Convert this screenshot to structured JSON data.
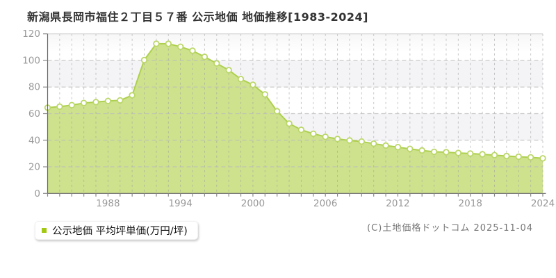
{
  "header": {
    "title": "新潟県長岡市福住２丁目５７番 公示地価 地価推移[1983-2024]"
  },
  "legend": {
    "label": "公示地価 平均坪単価(万円/坪)"
  },
  "footer": {
    "copyright": "(C)土地価格ドットコム 2025-11-04"
  },
  "chart_data": {
    "type": "area",
    "title": "新潟県長岡市福住２丁目５７番 公示地価 地価推移[1983-2024]",
    "xlabel": "",
    "ylabel": "平均坪単価(万円/坪)",
    "x": [
      1983,
      1984,
      1985,
      1986,
      1987,
      1988,
      1989,
      1990,
      1991,
      1992,
      1993,
      1994,
      1995,
      1996,
      1997,
      1998,
      1999,
      2000,
      2001,
      2002,
      2003,
      2004,
      2005,
      2006,
      2007,
      2008,
      2009,
      2010,
      2011,
      2012,
      2013,
      2014,
      2015,
      2016,
      2017,
      2018,
      2019,
      2020,
      2021,
      2022,
      2023,
      2024
    ],
    "series": [
      {
        "name": "公示地価 平均坪単価(万円/坪)",
        "values": [
          64.5,
          65.3,
          66.4,
          68.0,
          68.7,
          69.5,
          70.0,
          73.8,
          100.3,
          112.6,
          112.5,
          110.3,
          107.3,
          102.7,
          97.8,
          92.7,
          86.0,
          81.7,
          74.5,
          61.8,
          52.5,
          47.8,
          44.9,
          42.6,
          41.0,
          39.8,
          39.0,
          37.4,
          36.0,
          34.8,
          33.5,
          32.3,
          31.3,
          31.0,
          30.4,
          30.0,
          29.4,
          28.8,
          28.1,
          27.6,
          27.1,
          26.4
        ]
      }
    ],
    "ylim": [
      0,
      120
    ],
    "yticks": [
      0,
      20,
      40,
      60,
      80,
      100,
      120
    ],
    "xticks_labeled": [
      1988,
      1994,
      2000,
      2006,
      2012,
      2018,
      2024
    ],
    "grid": "dashed vertical per year, dashed horizontal per 20, zebra bands",
    "legend_position": "bottom-left"
  },
  "colors": {
    "area_fill": "#cee28e",
    "line": "#aed04e",
    "marker_fill": "#ffffff",
    "marker_stroke": "#bbd768",
    "band": "#f4f4f6",
    "grid_vertical": "#9a9a9a",
    "grid_horizontal": "#bdbdbd",
    "plot_top_border": "#cccccc",
    "axis": "#666666",
    "tick": "#888888",
    "axis_label": "#999999",
    "legend_marker": "#a3c814"
  }
}
